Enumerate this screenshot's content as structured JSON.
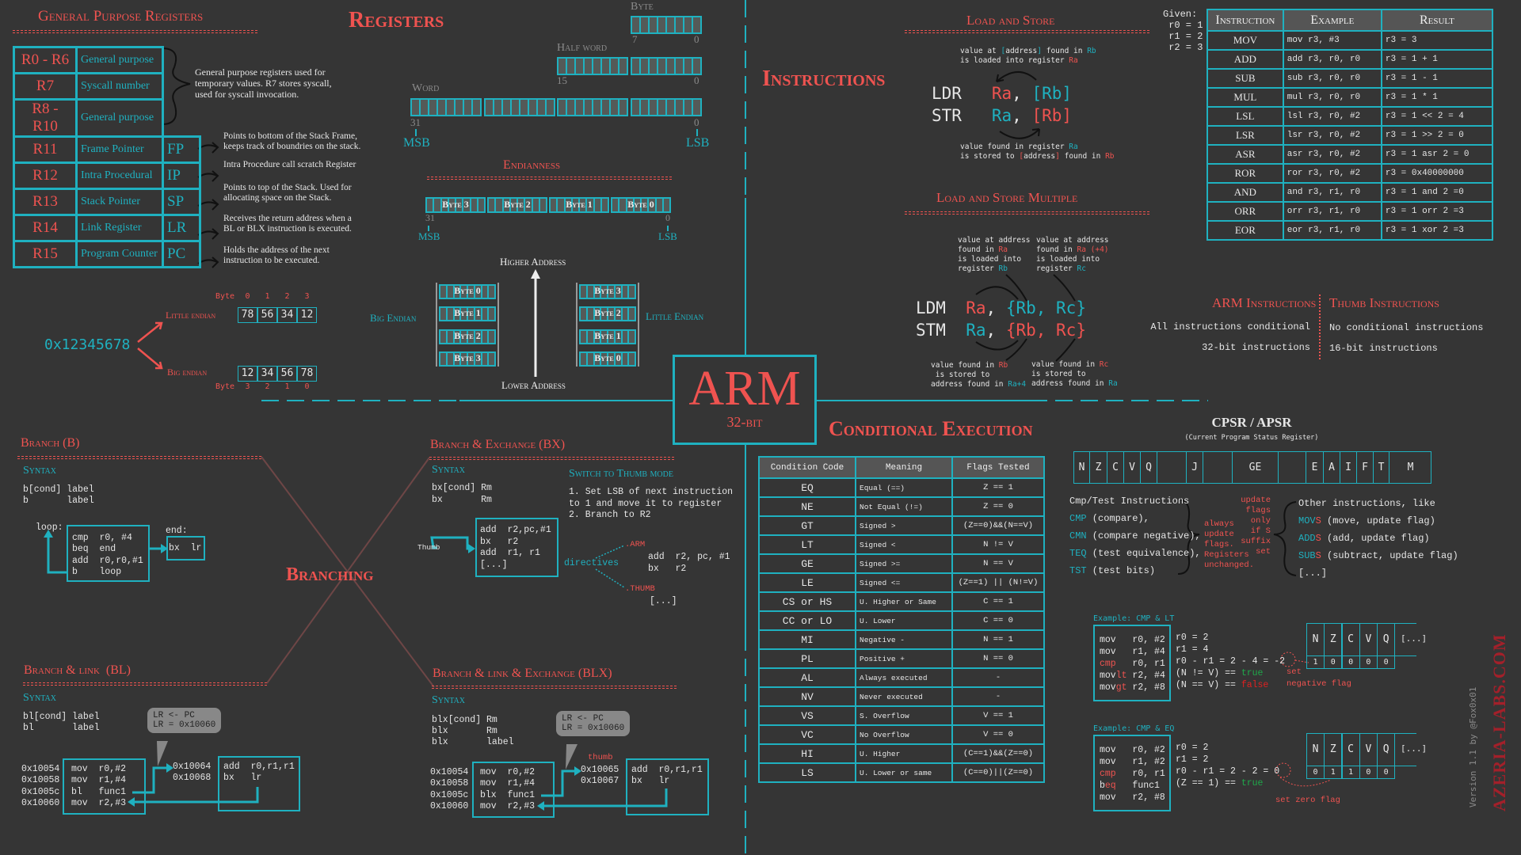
{
  "colors": {
    "background": "#353535",
    "red": "#ef5350",
    "teal": "#1fb1c0",
    "text": "#e6e6e6",
    "true": "#1fa84a",
    "false": "#e02020"
  },
  "gpr": {
    "title": "General Purpose Registers",
    "rows": [
      {
        "reg": "R0 - R6",
        "name": "General purpose",
        "alias": ""
      },
      {
        "reg": "R7",
        "name": "Syscall number",
        "alias": ""
      },
      {
        "reg": "R8 - R10",
        "name": "General purpose",
        "alias": ""
      },
      {
        "reg": "R11",
        "name": "Frame Pointer",
        "alias": "FP"
      },
      {
        "reg": "R12",
        "name": "Intra Procedural",
        "alias": "IP"
      },
      {
        "reg": "R13",
        "name": "Stack Pointer",
        "alias": "SP"
      },
      {
        "reg": "R14",
        "name": "Link Register",
        "alias": "LR"
      },
      {
        "reg": "R15",
        "name": "Program Counter",
        "alias": "PC"
      }
    ],
    "brace_note": "General purpose registers used for\ntemporary values. R7 stores syscall,\nused for syscall invocation.",
    "notes": [
      "Points to bottom of the Stack Frame,\nkeeps track of boundries on the stack.",
      "Intra Procedure call scratch Register",
      "Points to top of the Stack. Used for\nallocating space on the Stack.",
      "Receives the return address when a\nBL or BLX instruction is executed.",
      "Holds the address of the next\ninstruction to be executed."
    ]
  },
  "registers_title": "Registers",
  "sizes": {
    "byte": {
      "label": "Byte",
      "hi": "7",
      "lo": "0"
    },
    "half": {
      "label": "Half word",
      "hi": "15",
      "lo": "0"
    },
    "word": {
      "label": "Word",
      "hi": "31",
      "lo": "0",
      "msb": "MSB",
      "lsb": "LSB"
    }
  },
  "endianness": {
    "title": "Endianness",
    "bytes": [
      "Byte 3",
      "Byte 2",
      "Byte 1",
      "Byte 0"
    ],
    "hi": "31",
    "lo": "0",
    "msb": "MSB",
    "lsb": "LSB"
  },
  "endian_example": {
    "value": "0x12345678",
    "little": {
      "label": "Little endian",
      "byte_label": "Byte",
      "indices": [
        "0",
        "1",
        "2",
        "3"
      ],
      "cells": [
        "78",
        "56",
        "34",
        "12"
      ]
    },
    "big": {
      "label": "Big endian",
      "byte_label": "Byte",
      "indices": [
        "3",
        "2",
        "1",
        "0"
      ],
      "cells": [
        "12",
        "34",
        "56",
        "78"
      ]
    }
  },
  "memory": {
    "big_label": "Big Endian",
    "little_label": "Little Endian",
    "higher": "Higher Address",
    "lower": "Lower Address",
    "big_bytes": [
      "Byte 0",
      "Byte 1",
      "Byte 2",
      "Byte 3"
    ],
    "little_bytes": [
      "Byte 3",
      "Byte 2",
      "Byte 1",
      "Byte 0"
    ]
  },
  "logo": {
    "title": "ARM",
    "subtitle": "32-bit"
  },
  "instructions_title": "Instructions",
  "load_store": {
    "title": "Load and Store",
    "top_note": [
      [
        [
          "value at ",
          ""
        ],
        [
          "[",
          "t"
        ],
        [
          "address",
          ""
        ],
        [
          "]",
          "t"
        ],
        [
          " found in ",
          ""
        ],
        [
          "Rb",
          "t"
        ]
      ],
      [
        [
          "is loaded into register ",
          ""
        ],
        [
          "Ra",
          "r"
        ]
      ]
    ],
    "lines": [
      [
        [
          "LDR   ",
          ""
        ],
        [
          "Ra",
          "r"
        ],
        [
          ", ",
          ""
        ],
        [
          "[Rb]",
          "t"
        ]
      ],
      [
        [
          "STR   ",
          ""
        ],
        [
          "Ra",
          "t"
        ],
        [
          ", ",
          ""
        ],
        [
          "[Rb]",
          "r"
        ]
      ]
    ],
    "bottom_note": [
      [
        [
          "value found in register ",
          ""
        ],
        [
          "Ra",
          "t"
        ]
      ],
      [
        [
          "is stored to ",
          ""
        ],
        [
          "[",
          "r"
        ],
        [
          "address",
          ""
        ],
        [
          "]",
          "r"
        ],
        [
          " found in ",
          ""
        ],
        [
          "Rb",
          "r"
        ]
      ]
    ]
  },
  "load_store_multiple": {
    "title": "Load and Store Multiple",
    "note_1": [
      [
        [
          "value at address",
          ""
        ]
      ],
      [
        [
          "found in ",
          ""
        ],
        [
          "Ra",
          "r"
        ]
      ],
      [
        [
          "is loaded into",
          ""
        ]
      ],
      [
        [
          "register ",
          ""
        ],
        [
          "Rb",
          "t"
        ]
      ]
    ],
    "note_2": [
      [
        [
          "value at address",
          ""
        ]
      ],
      [
        [
          "found in ",
          ""
        ],
        [
          "Ra (+4)",
          "r"
        ]
      ],
      [
        [
          "is loaded into",
          ""
        ]
      ],
      [
        [
          "register ",
          ""
        ],
        [
          "Rc",
          "t"
        ]
      ]
    ],
    "lines": [
      [
        [
          "LDM  ",
          ""
        ],
        [
          "Ra",
          "r"
        ],
        [
          ", ",
          ""
        ],
        [
          "{Rb, Rc}",
          "t"
        ]
      ],
      [
        [
          "STM  ",
          ""
        ],
        [
          "Ra",
          "t"
        ],
        [
          ", ",
          ""
        ],
        [
          "{Rb, Rc}",
          "r"
        ]
      ]
    ],
    "note_3": [
      [
        [
          "value found in ",
          ""
        ],
        [
          "Rb",
          "r"
        ]
      ],
      [
        [
          " is stored to",
          ""
        ]
      ],
      [
        [
          "address found in ",
          ""
        ],
        [
          "Ra+4",
          "t"
        ]
      ]
    ],
    "note_4": [
      [
        [
          "value found in ",
          ""
        ],
        [
          "Rc",
          "r"
        ]
      ],
      [
        [
          "is stored to",
          ""
        ]
      ],
      [
        [
          "address found in ",
          ""
        ],
        [
          "Ra",
          "t"
        ]
      ]
    ]
  },
  "given": [
    "Given:",
    " r0 = 1",
    " r1 = 2",
    " r2 = 3"
  ],
  "instruction_table": {
    "headers": [
      "Instruction",
      "Example",
      "Result"
    ],
    "rows": [
      [
        "MOV",
        "mov r3, #3",
        "r3 = 3"
      ],
      [
        "ADD",
        "add r3, r0, r0",
        "r3 = 1 + 1"
      ],
      [
        "SUB",
        "sub r3, r0, r0",
        "r3 = 1 - 1"
      ],
      [
        "MUL",
        "mul r3, r0, r0",
        "r3 = 1 * 1"
      ],
      [
        "LSL",
        "lsl r3, r0, #2",
        "r3 = 1 << 2 = 4"
      ],
      [
        "LSR",
        "lsr r3, r0, #2",
        "r3 = 1 >> 2 = 0"
      ],
      [
        "ASR",
        "asr r3, r0, #2",
        "r3 = 1 asr 2 = 0"
      ],
      [
        "ROR",
        "ror r3, r0, #2",
        "r3 = 0x40000000"
      ],
      [
        "AND",
        "and r3, r1, r0",
        "r3 = 1 and 2 =0"
      ],
      [
        "ORR",
        "orr r3, r1, r0",
        "r3 = 1 orr 2 =3"
      ],
      [
        "EOR",
        "eor r3, r1, r0",
        "r3 = 1 xor 2 =3"
      ]
    ]
  },
  "arm_instructions": {
    "title": "ARM Instructions",
    "lines": [
      "All instructions conditional",
      "32-bit instructions"
    ]
  },
  "thumb_instructions": {
    "title": "Thumb Instructions",
    "lines": [
      "No conditional instructions",
      "16-bit instructions"
    ]
  },
  "conditional": {
    "title": "Conditional Execution",
    "headers": [
      "Condition Code",
      "Meaning",
      "Flags Tested"
    ],
    "rows": [
      [
        "EQ",
        "Equal (==)",
        "Z == 1"
      ],
      [
        "NE",
        "Not Equal (!=)",
        "Z == 0"
      ],
      [
        "GT",
        "Signed >",
        "(Z==0)&&(N==V)"
      ],
      [
        "LT",
        "Signed <",
        "N != V"
      ],
      [
        "GE",
        "Signed >=",
        "N == V"
      ],
      [
        "LE",
        "Signed <=",
        "(Z==1) || (N!=V)"
      ],
      [
        "CS or HS",
        "U. Higher or Same",
        "C == 1"
      ],
      [
        "CC or LO",
        "U. Lower",
        "C == 0"
      ],
      [
        "MI",
        "Negative -",
        "N == 1"
      ],
      [
        "PL",
        "Positive +",
        "N == 0"
      ],
      [
        "AL",
        "Always executed",
        "-"
      ],
      [
        "NV",
        "Never executed",
        "-"
      ],
      [
        "VS",
        "S. Overflow",
        "V == 1"
      ],
      [
        "VC",
        "No Overflow",
        "V == 0"
      ],
      [
        "HI",
        "U. Higher",
        "(C==1)&&(Z==0)"
      ],
      [
        "LS",
        "U. Lower or same",
        "(C==0)||(Z==0)"
      ]
    ]
  },
  "cpsr": {
    "title": "CPSR / APSR",
    "subtitle": "(Current Program Status Register)",
    "fields": [
      "N",
      "Z",
      "C",
      "V",
      "Q",
      "",
      "J",
      "",
      "GE",
      "",
      "E",
      "A",
      "I",
      "F",
      "T",
      "M"
    ]
  },
  "flags_notes": {
    "cmp_lines": [
      [
        [
          "Cmp/Test Instructions",
          ""
        ]
      ],
      [
        [
          "CMP",
          "t"
        ],
        [
          " (compare),",
          ""
        ]
      ],
      [
        [
          "CMN",
          "t"
        ],
        [
          " (compare negative),",
          ""
        ]
      ],
      [
        [
          "TEQ",
          "t"
        ],
        [
          " (test equivalence),",
          ""
        ]
      ],
      [
        [
          "TST",
          "t"
        ],
        [
          " (test bits)",
          ""
        ]
      ]
    ],
    "always": "always\nupdate\nflags.\nRegisters\nunchanged.",
    "only_s": "update\nflags\nonly\nif S\nsuffix\nset",
    "other_lines": [
      [
        [
          "Other instructions, like",
          ""
        ]
      ],
      [
        [
          "MOV",
          "t"
        ],
        [
          "S",
          "r"
        ],
        [
          " (move, update flag)",
          ""
        ]
      ],
      [
        [
          "ADD",
          "t"
        ],
        [
          "S",
          "r"
        ],
        [
          " (add, update flag)",
          ""
        ]
      ],
      [
        [
          "SUB",
          "t"
        ],
        [
          "S",
          "r"
        ],
        [
          " (subtract, update flag)",
          ""
        ]
      ],
      [
        [
          "[...]",
          ""
        ]
      ]
    ]
  },
  "example_lt": {
    "label": "Example: CMP & LT",
    "code": [
      [
        [
          "mov   r0, #2",
          ""
        ]
      ],
      [
        [
          "mov   r1, #4",
          ""
        ]
      ],
      [
        [
          "cmp",
          "r"
        ],
        [
          "   r0, r1",
          ""
        ]
      ],
      [
        [
          "mov",
          ""
        ],
        [
          "lt",
          "r"
        ],
        [
          " r2, #4",
          ""
        ]
      ],
      [
        [
          "mov",
          ""
        ],
        [
          "gt",
          "r"
        ],
        [
          " r2, #8",
          ""
        ]
      ]
    ],
    "eval": [
      [
        [
          "r0 = 2",
          ""
        ]
      ],
      [
        [
          "r1 = 4",
          ""
        ]
      ],
      [
        [
          "r0 - r1 = 2 - 4 = -2",
          ""
        ]
      ],
      [
        [
          "(N != V) == ",
          ""
        ],
        [
          "true",
          "g"
        ]
      ],
      [
        [
          "(N == V) == ",
          ""
        ],
        [
          "false",
          "f"
        ]
      ]
    ],
    "note": "set\nnegative flag",
    "flags": [
      "N",
      "Z",
      "C",
      "V",
      "Q"
    ],
    "values": [
      "1",
      "0",
      "0",
      "0",
      "0"
    ],
    "more": "[...]"
  },
  "example_eq": {
    "label": "Example: CMP & EQ",
    "code": [
      [
        [
          "mov   r0, #2",
          ""
        ]
      ],
      [
        [
          "mov   r1, #2",
          ""
        ]
      ],
      [
        [
          "cmp",
          "r"
        ],
        [
          "   r0, r1",
          ""
        ]
      ],
      [
        [
          "b",
          ""
        ],
        [
          "eq",
          "r"
        ],
        [
          "   func1",
          ""
        ]
      ],
      [
        [
          "mov   r2, #8",
          ""
        ]
      ]
    ],
    "eval": [
      [
        [
          "r0 = 2",
          ""
        ]
      ],
      [
        [
          "r1 = 2",
          ""
        ]
      ],
      [
        [
          "r0 - r1 = 2 - 2 = 0",
          ""
        ]
      ],
      [
        [
          "(Z == 1) == ",
          ""
        ],
        [
          "true",
          "g"
        ]
      ]
    ],
    "note": "set zero flag",
    "flags": [
      "N",
      "Z",
      "C",
      "V",
      "Q"
    ],
    "values": [
      "0",
      "1",
      "1",
      "0",
      "0"
    ],
    "more": "[...]"
  },
  "branching_title": "Branching",
  "branch": {
    "title": "Branch (B)",
    "syntax_label": "Syntax",
    "syntax": "b[cond] label\nb       label",
    "loop_label": "loop:",
    "loop_code": "cmp  r0, #4\nbeq  end\nadd  r0,r0,#1\nb    loop",
    "end_label": "end:",
    "end_code": "bx  lr"
  },
  "bx": {
    "title": "Branch & Exchange (BX)",
    "syntax_label": "Syntax",
    "syntax": "bx[cond] Rm\nbx       Rm",
    "thumb_label": "Thumb",
    "code": "add  r2,pc,#1\nbx   r2\nadd  r1, r1\n[...]",
    "switch_title": "Switch to Thumb mode",
    "steps": "1. Set LSB of next instruction\nto 1 and move it to register\n2. Branch to R2",
    "directives": "directives",
    "arm_dir": ".ARM",
    "arm_code": "add  r2, pc, #1\nbx   r2",
    "thumb_dir": ".THUMB",
    "thumb_code": "[...]"
  },
  "bl": {
    "title": "Branch & link  (BL)",
    "syntax_label": "Syntax",
    "syntax": "bl[cond] label\nbl       label",
    "bubble": "LR <- PC\nLR = 0x10060",
    "addrs": "0x10054\n0x10058\n0x1005c\n0x10060",
    "code": "mov  r0,#2\nmov  r1,#4\nbl   func1\nmov  r2,#3",
    "target_addrs": "0x10064\n0x10068",
    "target_code": "add  r0,r1,r1\nbx   lr"
  },
  "blx": {
    "title": "Branch & link & Exchange (BLX)",
    "syntax_label": "Syntax",
    "syntax": "blx[cond] Rm\nblx       Rm\nblx       label",
    "bubble": "LR <- PC\nLR = 0x10060",
    "thumb_label": "thumb",
    "addrs": "0x10054\n0x10058\n0x1005c\n0x10060",
    "code": "mov  r0,#2\nmov  r1,#4\nblx  func1\nmov  r2,#3",
    "target_addrs": "0x10065\n0x10067",
    "target_code": "add  r0,r1,r1\nbx   lr"
  },
  "credit": {
    "version": "Version 1.1 by @Fox0x01",
    "logo": "AZERIA-LABS.COM"
  }
}
